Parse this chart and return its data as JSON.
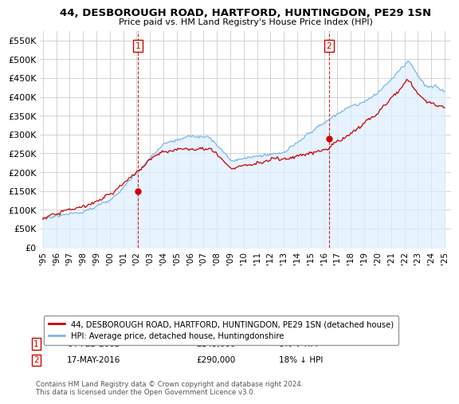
{
  "title": "44, DESBOROUGH ROAD, HARTFORD, HUNTINGDON, PE29 1SN",
  "subtitle": "Price paid vs. HM Land Registry's House Price Index (HPI)",
  "legend_line1": "44, DESBOROUGH ROAD, HARTFORD, HUNTINGDON, PE29 1SN (detached house)",
  "legend_line2": "HPI: Average price, detached house, Huntingdonshire",
  "annotation1_date": "04-FEB-2002",
  "annotation1_price": "£149,000",
  "annotation1_hpi": "8% ↓ HPI",
  "annotation2_date": "17-MAY-2016",
  "annotation2_price": "£290,000",
  "annotation2_hpi": "18% ↓ HPI",
  "footer": "Contains HM Land Registry data © Crown copyright and database right 2024.\nThis data is licensed under the Open Government Licence v3.0.",
  "hpi_color": "#7ab8e8",
  "hpi_fill_color": "#ddeeff",
  "price_color": "#cc0000",
  "background_color": "#ffffff",
  "grid_color": "#cccccc",
  "ylim": [
    0,
    575000
  ],
  "yticks": [
    0,
    50000,
    100000,
    150000,
    200000,
    250000,
    300000,
    350000,
    400000,
    450000,
    500000,
    550000
  ],
  "ytick_labels": [
    "£0",
    "£50K",
    "£100K",
    "£150K",
    "£200K",
    "£250K",
    "£300K",
    "£350K",
    "£400K",
    "£450K",
    "£500K",
    "£550K"
  ],
  "sale1_year": 2002.09,
  "sale1_price": 149000,
  "sale2_year": 2016.37,
  "sale2_price": 290000
}
